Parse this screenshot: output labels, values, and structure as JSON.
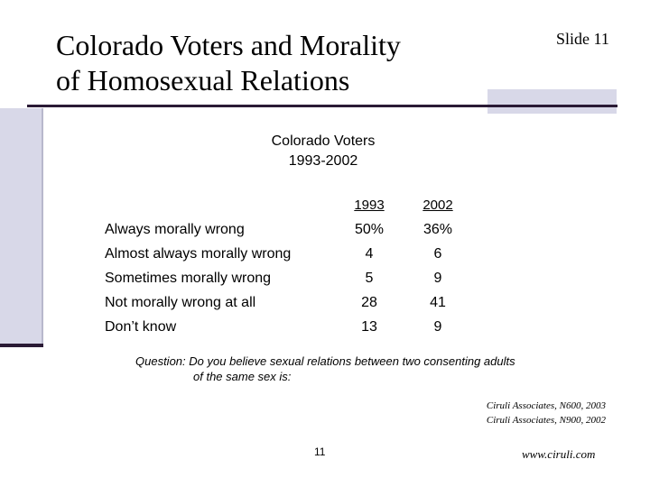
{
  "header": {
    "title_line1": "Colorado Voters and Morality",
    "title_line2": "of Homosexual Relations",
    "slide_label": "Slide 11"
  },
  "subtitle": {
    "line1": "Colorado Voters",
    "line2": "1993-2002"
  },
  "table": {
    "columns": [
      "1993",
      "2002"
    ],
    "rows": [
      {
        "label": "Always morally wrong",
        "y1993": "50%",
        "y2002": "36%"
      },
      {
        "label": "Almost always morally wrong",
        "y1993": "4",
        "y2002": "6"
      },
      {
        "label": "Sometimes morally wrong",
        "y1993": "5",
        "y2002": "9"
      },
      {
        "label": "Not morally wrong at all",
        "y1993": "28",
        "y2002": "41"
      },
      {
        "label": "Don’t know",
        "y1993": "13",
        "y2002": "9"
      }
    ]
  },
  "question": {
    "label": "Question:",
    "line1": "Do you believe sexual relations between two consenting adults",
    "line2": "of the same sex is:"
  },
  "sources": [
    "Ciruli Associates, N600, 2003",
    "Ciruli Associates, N900, 2002"
  ],
  "footer": {
    "page_number": "11",
    "website": "www.ciruli.com"
  }
}
